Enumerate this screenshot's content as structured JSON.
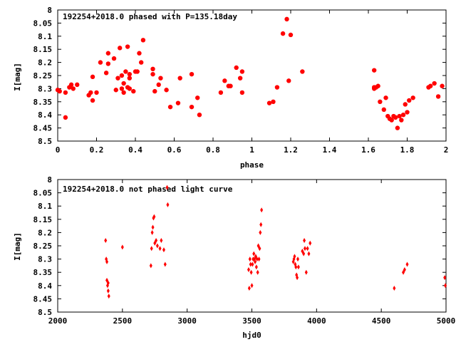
{
  "chart_data": [
    {
      "type": "scatter",
      "title": "192254+2018.0 phased with P=135.18day",
      "xlabel": "phase",
      "ylabel": "I[mag]",
      "xlim": [
        0,
        2
      ],
      "ylim": [
        8.5,
        8.0
      ],
      "y_inverted": true,
      "x_ticks": [
        "0",
        "0.2",
        "0.4",
        "0.6",
        "0.8",
        "1",
        "1.2",
        "1.4",
        "1.6",
        "1.8",
        "2"
      ],
      "y_ticks": [
        "8",
        "8.05",
        "8.1",
        "8.15",
        "8.2",
        "8.25",
        "8.3",
        "8.35",
        "8.4",
        "8.45",
        "8.5"
      ],
      "grid": false,
      "marker_color": "#ff0000",
      "marker": "filled-circle",
      "series": [
        {
          "x": [
            0.0,
            0.01,
            0.04,
            0.04,
            0.06,
            0.07,
            0.08,
            0.1,
            0.16,
            0.17,
            0.18,
            0.18,
            0.2,
            0.22,
            0.25,
            0.26,
            0.26,
            0.29,
            0.3,
            0.31,
            0.32,
            0.33,
            0.33,
            0.34,
            0.34,
            0.35,
            0.36,
            0.36,
            0.37,
            0.37,
            0.37,
            0.39,
            0.4,
            0.41,
            0.42,
            0.43,
            0.44,
            0.49,
            0.49,
            0.5,
            0.52,
            0.53,
            0.56,
            0.58,
            0.62,
            0.63,
            0.69,
            0.69,
            0.72,
            0.73,
            0.84,
            0.86,
            0.88,
            0.89,
            0.92,
            0.94,
            0.95,
            0.95,
            1.09,
            1.11,
            1.13,
            1.16,
            1.18,
            1.19,
            1.2,
            1.26,
            1.63,
            1.63,
            1.63,
            1.64,
            1.65,
            1.66,
            1.68,
            1.69,
            1.7,
            1.71,
            1.72,
            1.73,
            1.74,
            1.75,
            1.76,
            1.77,
            1.78,
            1.79,
            1.8,
            1.81,
            1.83,
            1.91,
            1.92,
            1.94,
            1.96,
            1.98
          ],
          "y": [
            8.305,
            8.31,
            8.41,
            8.315,
            8.295,
            8.285,
            8.3,
            8.285,
            8.325,
            8.315,
            8.345,
            8.255,
            8.315,
            8.2,
            8.24,
            8.165,
            8.205,
            8.185,
            8.305,
            8.26,
            8.145,
            8.3,
            8.25,
            8.28,
            8.315,
            8.235,
            8.14,
            8.295,
            8.245,
            8.26,
            8.3,
            8.31,
            8.235,
            8.235,
            8.165,
            8.2,
            8.115,
            8.225,
            8.245,
            8.31,
            8.285,
            8.26,
            8.305,
            8.37,
            8.355,
            8.26,
            8.37,
            8.245,
            8.335,
            8.4,
            8.315,
            8.27,
            8.29,
            8.29,
            8.22,
            8.26,
            8.235,
            8.315,
            8.355,
            8.35,
            8.295,
            8.09,
            8.035,
            8.27,
            8.095,
            8.235,
            8.295,
            8.3,
            8.23,
            8.295,
            8.29,
            8.35,
            8.38,
            8.335,
            8.405,
            8.415,
            8.42,
            8.405,
            8.41,
            8.45,
            8.405,
            8.42,
            8.4,
            8.36,
            8.39,
            8.345,
            8.335,
            8.295,
            8.29,
            8.28,
            8.33,
            8.29
          ]
        }
      ]
    },
    {
      "type": "scatter",
      "title": "192254+2018.0 not phased light curve",
      "xlabel": "hjd0",
      "ylabel": "I[mag]",
      "xlim": [
        2000,
        5000
      ],
      "ylim": [
        8.5,
        8.0
      ],
      "y_inverted": true,
      "x_ticks": [
        "2000",
        "2500",
        "3000",
        "3500",
        "4000",
        "4500",
        "5000"
      ],
      "y_ticks": [
        "8",
        "8.05",
        "8.1",
        "8.15",
        "8.2",
        "8.25",
        "8.3",
        "8.35",
        "8.4",
        "8.45",
        "8.5"
      ],
      "grid": false,
      "marker_color": "#ff0000",
      "marker": "small-diamond",
      "series": [
        {
          "x": [
            2370,
            2375,
            2380,
            2380,
            2385,
            2390,
            2390,
            2395,
            2500,
            2720,
            2725,
            2730,
            2735,
            2740,
            2745,
            2750,
            2760,
            2770,
            2790,
            2800,
            2820,
            2830,
            2845,
            2850,
            3475,
            3480,
            3485,
            3490,
            3495,
            3500,
            3505,
            3510,
            3515,
            3520,
            3525,
            3530,
            3535,
            3540,
            3545,
            3550,
            3555,
            3560,
            3565,
            3570,
            3575,
            3820,
            3825,
            3830,
            3835,
            3840,
            3845,
            3850,
            3855,
            3860,
            3890,
            3900,
            3905,
            3910,
            3920,
            3930,
            3940,
            3950,
            4600,
            4670,
            4680,
            4700,
            4990,
            4995
          ],
          "y": [
            8.23,
            8.3,
            8.31,
            8.38,
            8.4,
            8.39,
            8.42,
            8.44,
            8.255,
            8.325,
            8.26,
            8.2,
            8.18,
            8.145,
            8.14,
            8.24,
            8.23,
            8.25,
            8.26,
            8.23,
            8.265,
            8.32,
            8.03,
            8.095,
            8.34,
            8.41,
            8.3,
            8.32,
            8.35,
            8.4,
            8.32,
            8.3,
            8.28,
            8.3,
            8.31,
            8.29,
            8.33,
            8.3,
            8.35,
            8.25,
            8.3,
            8.26,
            8.2,
            8.17,
            8.115,
            8.31,
            8.3,
            8.29,
            8.32,
            8.33,
            8.36,
            8.37,
            8.3,
            8.33,
            8.27,
            8.28,
            8.23,
            8.26,
            8.35,
            8.26,
            8.28,
            8.24,
            8.41,
            8.35,
            8.34,
            8.32,
            8.37,
            8.4
          ]
        }
      ]
    }
  ]
}
